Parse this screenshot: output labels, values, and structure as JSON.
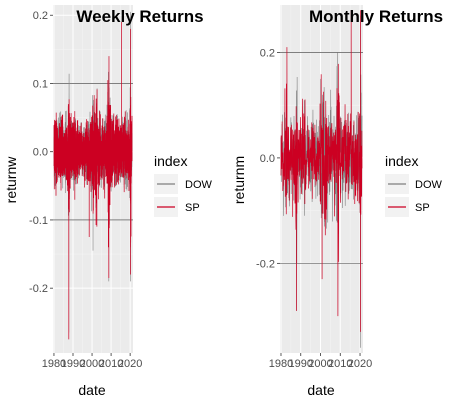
{
  "chart_data": [
    {
      "type": "line",
      "title": "Weekly Returns",
      "xlabel": "date",
      "ylabel": "returnw",
      "x_ticks": [
        "1980",
        "1990",
        "2000",
        "2010",
        "2020"
      ],
      "y_ticks": [
        "-0.2",
        "-0.1",
        "0.0",
        "0.1",
        "0.2"
      ],
      "y_tick_values": [
        -0.2,
        -0.1,
        0.0,
        0.1,
        0.2
      ],
      "xlim": [
        1979.5,
        2021.5
      ],
      "ylim": [
        -0.295,
        0.215
      ],
      "hlines": [
        0.1,
        -0.1
      ],
      "legend_title": "index",
      "series": [
        {
          "name": "DOW",
          "color": "#808080",
          "extremes": [
            [
              1987.8,
              -0.265
            ],
            [
              2008.8,
              -0.19
            ],
            [
              2020.2,
              0.205
            ],
            [
              2020.2,
              -0.19
            ],
            [
              2000.5,
              -0.145
            ]
          ]
        },
        {
          "name": "SP",
          "color": "#cc0022",
          "extremes": [
            [
              1987.8,
              -0.275
            ],
            [
              2008.8,
              -0.185
            ],
            [
              2020.2,
              0.18
            ],
            [
              2020.2,
              -0.18
            ],
            [
              1998.5,
              -0.125
            ],
            [
              2015.5,
              0.19
            ]
          ]
        }
      ]
    },
    {
      "type": "line",
      "title": "Monthly Returns",
      "xlabel": "date",
      "ylabel": "returnm",
      "x_ticks": [
        "1980",
        "1990",
        "2000",
        "2010",
        "2020"
      ],
      "y_ticks": [
        "-0.2",
        "0.0",
        "0.2"
      ],
      "y_tick_values": [
        -0.2,
        0.0,
        0.2
      ],
      "xlim": [
        1979.5,
        2021.5
      ],
      "ylim": [
        -0.37,
        0.29
      ],
      "hlines": [
        0.2,
        -0.2
      ],
      "legend_title": "index",
      "series": [
        {
          "name": "DOW",
          "color": "#808080",
          "extremes": [
            [
              2020.2,
              -0.36
            ],
            [
              2020.2,
              0.27
            ],
            [
              1987.8,
              -0.29
            ]
          ]
        },
        {
          "name": "SP",
          "color": "#cc0022",
          "extremes": [
            [
              1987.8,
              -0.29
            ],
            [
              2008.8,
              -0.3
            ],
            [
              2020.2,
              0.28
            ],
            [
              2020.2,
              -0.33
            ],
            [
              2000.8,
              -0.23
            ],
            [
              2015.5,
              0.28
            ],
            [
              1983.0,
              0.21
            ]
          ]
        }
      ]
    }
  ]
}
